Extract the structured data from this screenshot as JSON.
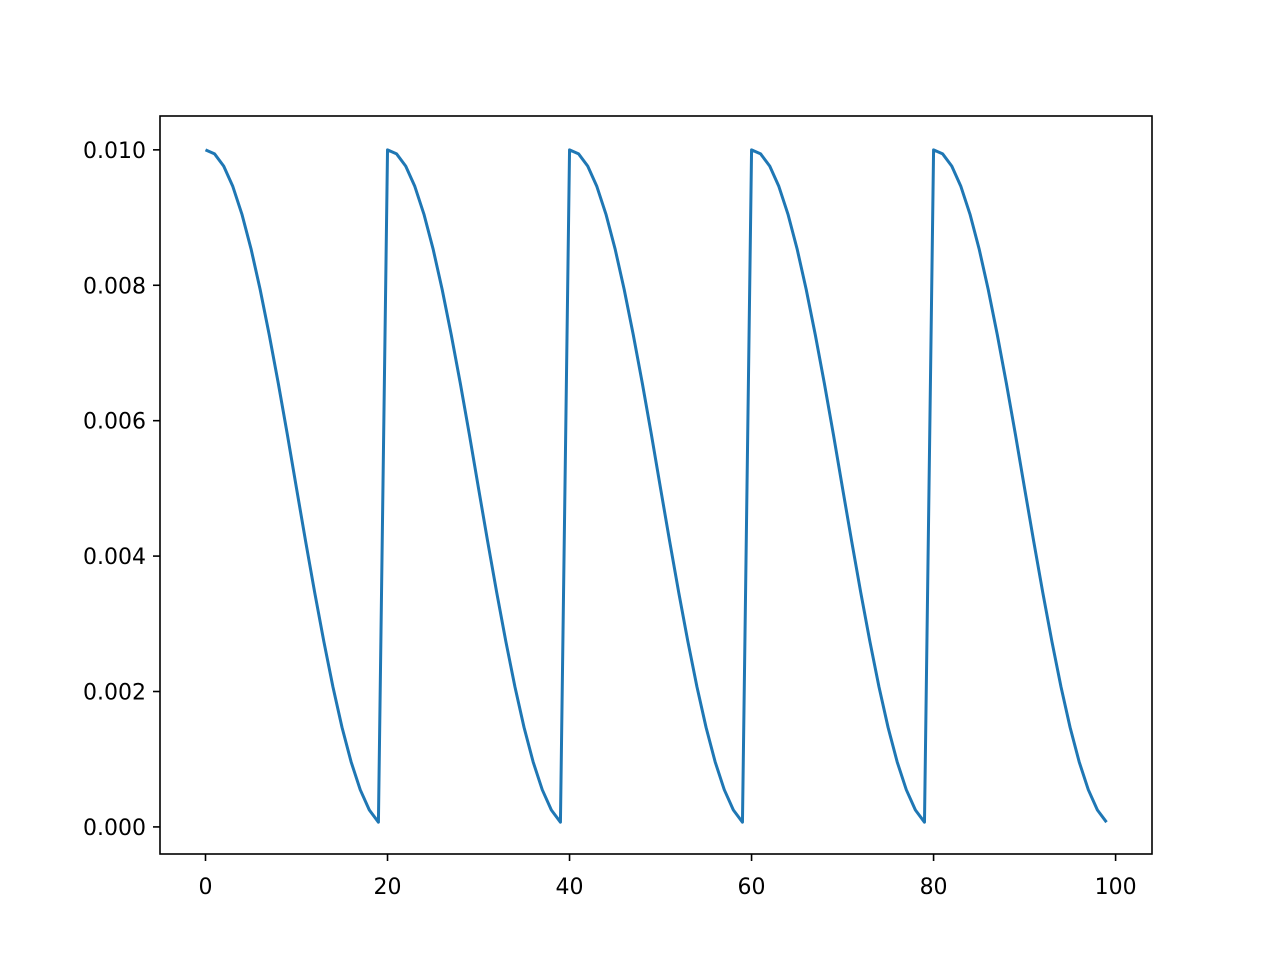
{
  "chart_data": {
    "type": "line",
    "title": "",
    "xlabel": "",
    "ylabel": "",
    "xlim": [
      -5,
      104
    ],
    "ylim": [
      -0.0004,
      0.0105
    ],
    "grid": false,
    "legend": "none",
    "x_ticks": [
      0,
      20,
      40,
      60,
      80,
      100
    ],
    "x_tick_labels": [
      "0",
      "20",
      "40",
      "60",
      "80",
      "100"
    ],
    "y_ticks": [
      0.0,
      0.002,
      0.004,
      0.006,
      0.008,
      0.01
    ],
    "y_tick_labels": [
      "0.000",
      "0.002",
      "0.004",
      "0.006",
      "0.008",
      "0.010"
    ],
    "series": [
      {
        "color": "#1f77b4",
        "x": [
          0,
          1,
          2,
          3,
          4,
          5,
          6,
          7,
          8,
          9,
          10,
          11,
          12,
          13,
          14,
          15,
          16,
          17,
          18,
          19,
          20,
          21,
          22,
          23,
          24,
          25,
          26,
          27,
          28,
          29,
          30,
          31,
          32,
          33,
          34,
          35,
          36,
          37,
          38,
          39,
          40,
          41,
          42,
          43,
          44,
          45,
          46,
          47,
          48,
          49,
          50,
          51,
          52,
          53,
          54,
          55,
          56,
          57,
          58,
          59,
          60,
          61,
          62,
          63,
          64,
          65,
          66,
          67,
          68,
          69,
          70,
          71,
          72,
          73,
          74,
          75,
          76,
          77,
          78,
          79,
          80,
          81,
          82,
          83,
          84,
          85,
          86,
          87,
          88,
          89,
          90,
          91,
          92,
          93,
          94,
          95,
          96,
          97,
          98,
          99
        ],
        "values": [
          0.01,
          0.00994,
          0.00976,
          0.00946,
          0.00905,
          0.00854,
          0.00794,
          0.00727,
          0.00655,
          0.00579,
          0.005,
          0.00422,
          0.00346,
          0.00274,
          0.00207,
          0.00147,
          0.00096,
          0.00055,
          0.00025,
          7e-05,
          0.01,
          0.00994,
          0.00976,
          0.00946,
          0.00905,
          0.00854,
          0.00794,
          0.00727,
          0.00655,
          0.00579,
          0.005,
          0.00422,
          0.00346,
          0.00274,
          0.00207,
          0.00147,
          0.00096,
          0.00055,
          0.00025,
          7e-05,
          0.01,
          0.00994,
          0.00976,
          0.00946,
          0.00905,
          0.00854,
          0.00794,
          0.00727,
          0.00655,
          0.00579,
          0.005,
          0.00422,
          0.00346,
          0.00274,
          0.00207,
          0.00147,
          0.00096,
          0.00055,
          0.00025,
          7e-05,
          0.01,
          0.00994,
          0.00976,
          0.00946,
          0.00905,
          0.00854,
          0.00794,
          0.00727,
          0.00655,
          0.00579,
          0.005,
          0.00422,
          0.00346,
          0.00274,
          0.00207,
          0.00147,
          0.00096,
          0.00055,
          0.00025,
          7e-05,
          0.01,
          0.00994,
          0.00976,
          0.00946,
          0.00905,
          0.00854,
          0.00794,
          0.00727,
          0.00655,
          0.00579,
          0.005,
          0.00422,
          0.00346,
          0.00274,
          0.00207,
          0.00147,
          0.00096,
          0.00055,
          0.00025,
          7e-05
        ]
      }
    ]
  }
}
